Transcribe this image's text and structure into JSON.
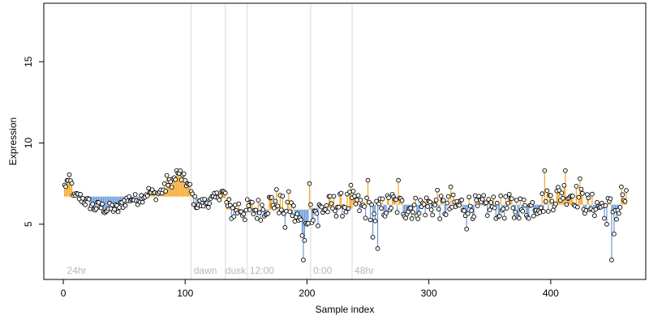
{
  "chart_data": {
    "type": "scatter",
    "title": "",
    "xlabel": "Sample index",
    "ylabel": "Expression",
    "xlim": [
      -16,
      478
    ],
    "ylim": [
      1.6,
      18.6
    ],
    "x_ticks": [
      0,
      100,
      200,
      300,
      400
    ],
    "y_ticks": [
      5,
      10,
      15
    ],
    "grid": false,
    "legend": "none",
    "colors": {
      "point_fill": "#ffffff",
      "point_stroke": "#000000",
      "above_line": "#f5a623",
      "below_line": "#6a9bd8",
      "region_line": "#d9d9d9",
      "region_label": "#b8b8b8"
    },
    "region_boundaries": [
      105,
      133,
      151,
      203,
      237
    ],
    "region_labels": [
      {
        "label": "24hr",
        "x": 3
      },
      {
        "label": "dawn",
        "x": 107
      },
      {
        "label": "dusk",
        "x": 133
      },
      {
        "label": "12:00",
        "x": 153
      },
      {
        "label": "0:00",
        "x": 205
      },
      {
        "label": "48hr",
        "x": 239
      }
    ],
    "segment_means": [
      {
        "x_start": 1,
        "x_end": 105,
        "mean": 6.7
      },
      {
        "x_start": 106,
        "x_end": 133,
        "mean": 6.6
      },
      {
        "x_start": 134,
        "x_end": 151,
        "mean": 5.9
      },
      {
        "x_start": 152,
        "x_end": 203,
        "mean": 5.9
      },
      {
        "x_start": 204,
        "x_end": 237,
        "mean": 6.0
      },
      {
        "x_start": 238,
        "x_end": 462,
        "mean": 6.2
      }
    ],
    "anchors": [
      [
        1,
        7.3
      ],
      [
        3,
        7.6
      ],
      [
        5,
        7.7
      ],
      [
        7,
        7.4
      ],
      [
        9,
        6.6
      ],
      [
        12,
        6.7
      ],
      [
        15,
        6.6
      ],
      [
        18,
        6.4
      ],
      [
        21,
        6.3
      ],
      [
        25,
        6.0
      ],
      [
        30,
        6.1
      ],
      [
        35,
        5.9
      ],
      [
        40,
        6.0
      ],
      [
        45,
        5.9
      ],
      [
        50,
        6.4
      ],
      [
        55,
        6.6
      ],
      [
        60,
        6.5
      ],
      [
        65,
        6.7
      ],
      [
        70,
        7.0
      ],
      [
        75,
        6.8
      ],
      [
        80,
        7.0
      ],
      [
        85,
        7.3
      ],
      [
        90,
        7.7
      ],
      [
        95,
        8.0
      ],
      [
        100,
        7.7
      ],
      [
        104,
        7.2
      ],
      [
        107,
        6.5
      ],
      [
        110,
        6.2
      ],
      [
        115,
        6.3
      ],
      [
        120,
        6.4
      ],
      [
        125,
        6.6
      ],
      [
        130,
        7.0
      ],
      [
        133,
        6.8
      ],
      [
        135,
        5.9
      ],
      [
        140,
        5.9
      ],
      [
        145,
        6.0
      ],
      [
        150,
        5.8
      ],
      [
        155,
        5.9
      ],
      [
        160,
        5.9
      ],
      [
        165,
        6.1
      ],
      [
        170,
        6.3
      ],
      [
        175,
        6.5
      ],
      [
        180,
        6.0
      ],
      [
        185,
        6.3
      ],
      [
        190,
        5.5
      ],
      [
        195,
        5.0
      ],
      [
        200,
        5.5
      ],
      [
        203,
        5.8
      ],
      [
        205,
        5.8
      ],
      [
        210,
        5.9
      ],
      [
        215,
        6.0
      ],
      [
        220,
        6.1
      ],
      [
        225,
        6.2
      ],
      [
        230,
        6.2
      ],
      [
        235,
        6.3
      ],
      [
        240,
        6.3
      ],
      [
        245,
        6.0
      ],
      [
        250,
        6.0
      ],
      [
        260,
        5.9
      ],
      [
        270,
        6.3
      ],
      [
        280,
        6.0
      ],
      [
        290,
        6.0
      ],
      [
        300,
        6.2
      ],
      [
        310,
        6.0
      ],
      [
        320,
        6.1
      ],
      [
        330,
        6.2
      ],
      [
        340,
        6.0
      ],
      [
        350,
        6.1
      ],
      [
        360,
        6.0
      ],
      [
        370,
        6.2
      ],
      [
        380,
        5.9
      ],
      [
        390,
        6.3
      ],
      [
        400,
        6.5
      ],
      [
        410,
        7.0
      ],
      [
        420,
        6.8
      ],
      [
        430,
        6.2
      ],
      [
        440,
        6.1
      ],
      [
        450,
        6.0
      ],
      [
        455,
        5.8
      ],
      [
        460,
        6.5
      ],
      [
        462,
        6.6
      ]
    ],
    "outliers": [
      [
        4,
        7.7
      ],
      [
        85,
        8.0
      ],
      [
        93,
        8.3
      ],
      [
        96,
        8.3
      ],
      [
        182,
        4.8
      ],
      [
        196,
        4.3
      ],
      [
        197,
        2.8
      ],
      [
        198,
        4.0
      ],
      [
        200,
        5.0
      ],
      [
        202,
        7.5
      ],
      [
        209,
        4.9
      ],
      [
        236,
        7.4
      ],
      [
        250,
        7.7
      ],
      [
        254,
        4.2
      ],
      [
        256,
        5.2
      ],
      [
        258,
        3.5
      ],
      [
        275,
        7.7
      ],
      [
        307,
        7.1
      ],
      [
        318,
        7.3
      ],
      [
        331,
        4.7
      ],
      [
        370,
        5.4
      ],
      [
        377,
        5.8
      ],
      [
        395,
        8.3
      ],
      [
        412,
        8.3
      ],
      [
        424,
        7.8
      ],
      [
        432,
        5.9
      ],
      [
        446,
        5.0
      ],
      [
        450,
        2.8
      ],
      [
        452,
        4.4
      ],
      [
        458,
        7.3
      ]
    ],
    "n_points": 462
  }
}
